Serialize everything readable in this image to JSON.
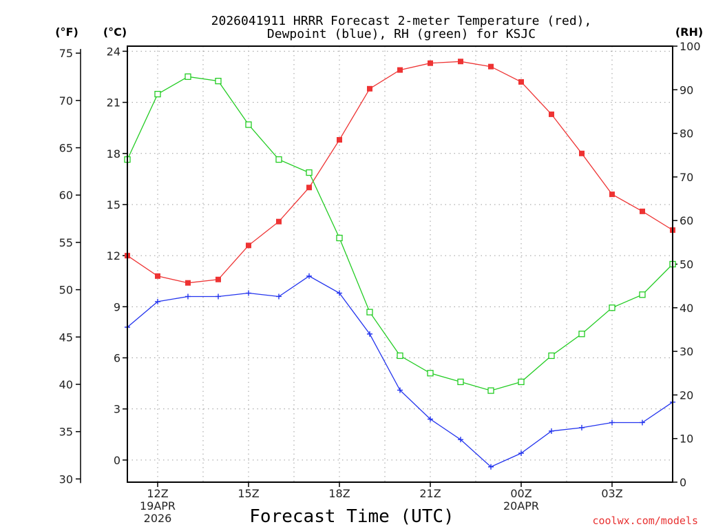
{
  "chart_data": {
    "type": "line",
    "title_lines": [
      "2026041911 HRRR Forecast 2-meter Temperature (red),",
      "Dewpoint (blue), RH (green) for KSJC"
    ],
    "xlabel": "Forecast Time (UTC)",
    "credit": "coolwx.com/models",
    "x_hours": [
      11,
      12,
      13,
      14,
      15,
      16,
      17,
      18,
      19,
      20,
      21,
      22,
      23,
      24,
      25,
      26,
      27,
      28,
      29
    ],
    "xlim": [
      11,
      29
    ],
    "x_ticks": [
      {
        "hour": 12,
        "lines": [
          "12Z",
          "19APR",
          "2026"
        ]
      },
      {
        "hour": 15,
        "lines": [
          "15Z"
        ]
      },
      {
        "hour": 18,
        "lines": [
          "18Z"
        ]
      },
      {
        "hour": 21,
        "lines": [
          "21Z"
        ]
      },
      {
        "hour": 24,
        "lines": [
          "00Z",
          "20APR"
        ]
      },
      {
        "hour": 27,
        "lines": [
          "03Z"
        ]
      }
    ],
    "celsius_axis": {
      "unit_label": "(°C)",
      "ylim": [
        -1.3,
        24.3
      ],
      "ticks": [
        0,
        3,
        6,
        9,
        12,
        15,
        18,
        21,
        24
      ]
    },
    "fahrenheit_axis": {
      "unit_label": "(°F)",
      "ticks": [
        30,
        35,
        40,
        45,
        50,
        55,
        60,
        65,
        70,
        75
      ]
    },
    "rh_axis": {
      "unit_label": "(RH)",
      "ylim": [
        0,
        100
      ],
      "ticks": [
        0,
        10,
        20,
        30,
        40,
        50,
        60,
        70,
        80,
        90,
        100
      ]
    },
    "series": [
      {
        "name": "Temperature",
        "axis": "celsius",
        "color": "#ee3333",
        "marker": "filled-square",
        "values": [
          12.0,
          10.8,
          10.4,
          10.6,
          12.6,
          14.0,
          16.0,
          18.8,
          21.8,
          22.9,
          23.3,
          23.4,
          23.1,
          22.2,
          20.3,
          18.0,
          15.6,
          14.6,
          13.5
        ]
      },
      {
        "name": "Dewpoint",
        "axis": "celsius",
        "color": "#2233ee",
        "marker": "plus",
        "values": [
          7.8,
          9.3,
          9.6,
          9.6,
          9.8,
          9.6,
          10.8,
          9.8,
          7.4,
          4.1,
          2.4,
          1.2,
          -0.4,
          0.4,
          1.7,
          1.9,
          2.2,
          2.2,
          3.4
        ]
      },
      {
        "name": "Relative Humidity",
        "axis": "rh",
        "color": "#22cc22",
        "marker": "open-square",
        "values": [
          74,
          89,
          93,
          92,
          82,
          74,
          71,
          56,
          39,
          29,
          25,
          23,
          21,
          23,
          29,
          34,
          40,
          43,
          50
        ]
      }
    ]
  }
}
